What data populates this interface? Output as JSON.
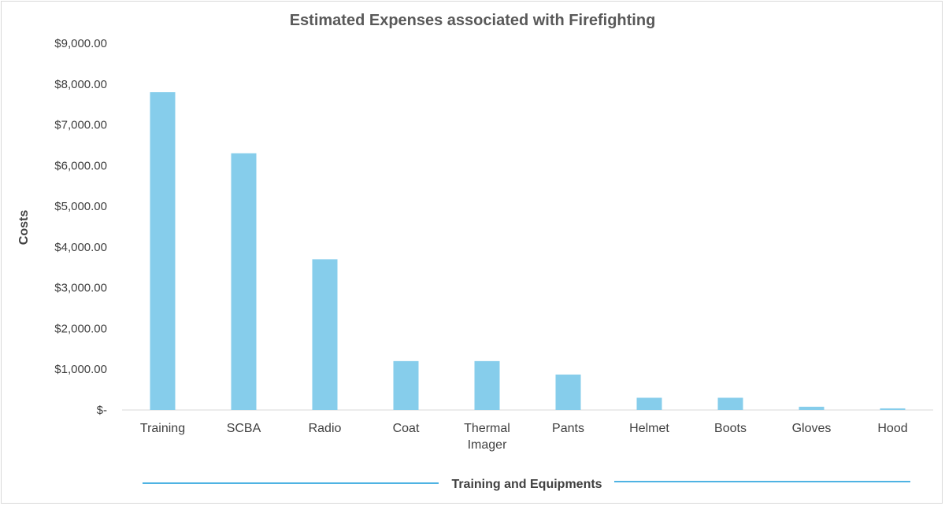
{
  "chart_data": {
    "type": "bar",
    "title": "Estimated Expenses associated with Firefighting",
    "xlabel": "Training and Equipments",
    "ylabel": "Costs",
    "categories": [
      [
        "Training"
      ],
      [
        "SCBA"
      ],
      [
        "Radio"
      ],
      [
        "Coat"
      ],
      [
        "Thermal",
        "Imager"
      ],
      [
        "Pants"
      ],
      [
        "Helmet"
      ],
      [
        "Boots"
      ],
      [
        "Gloves"
      ],
      [
        "Hood"
      ]
    ],
    "values": [
      7800,
      6300,
      3700,
      1200,
      1200,
      870,
      300,
      300,
      80,
      40
    ],
    "ylim": [
      0,
      9000
    ],
    "yticks": [
      0,
      1000,
      2000,
      3000,
      4000,
      5000,
      6000,
      7000,
      8000,
      9000
    ],
    "ytick_labels": [
      "$-",
      "$1,000.00",
      "$2,000.00",
      "$3,000.00",
      "$4,000.00",
      "$5,000.00",
      "$6,000.00",
      "$7,000.00",
      "$8,000.00",
      "$9,000.00"
    ],
    "grid": false,
    "legend": "none",
    "colors": {
      "bar": "#86CDEB",
      "axis_title_line": "#4FB3E3",
      "axis_line": "#d9d9d9"
    }
  }
}
